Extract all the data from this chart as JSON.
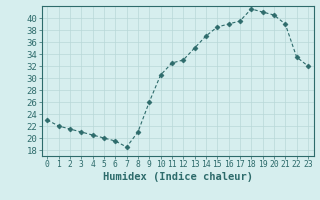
{
  "x": [
    0,
    1,
    2,
    3,
    4,
    5,
    6,
    7,
    8,
    9,
    10,
    11,
    12,
    13,
    14,
    15,
    16,
    17,
    18,
    19,
    20,
    21,
    22,
    23
  ],
  "y": [
    23,
    22,
    21.5,
    21,
    20.5,
    20,
    19.5,
    18.5,
    21,
    26,
    30.5,
    32.5,
    33,
    35,
    37,
    38.5,
    39,
    39.5,
    41.5,
    41,
    40.5,
    39,
    33.5,
    32
  ],
  "line_color": "#2d6b6b",
  "marker": "D",
  "marker_size": 2.5,
  "bg_color": "#d6eeee",
  "grid_color": "#b8d8d8",
  "xlabel": "Humidex (Indice chaleur)",
  "xlim": [
    -0.5,
    23.5
  ],
  "ylim": [
    17,
    42
  ],
  "yticks": [
    18,
    20,
    22,
    24,
    26,
    28,
    30,
    32,
    34,
    36,
    38,
    40
  ],
  "xticks": [
    0,
    1,
    2,
    3,
    4,
    5,
    6,
    7,
    8,
    9,
    10,
    11,
    12,
    13,
    14,
    15,
    16,
    17,
    18,
    19,
    20,
    21,
    22,
    23
  ],
  "tick_color": "#2d6b6b",
  "spine_color": "#2d6b6b",
  "xlabel_fontsize": 7.5,
  "tick_fontsize": 6.5,
  "xtick_fontsize": 5.8
}
